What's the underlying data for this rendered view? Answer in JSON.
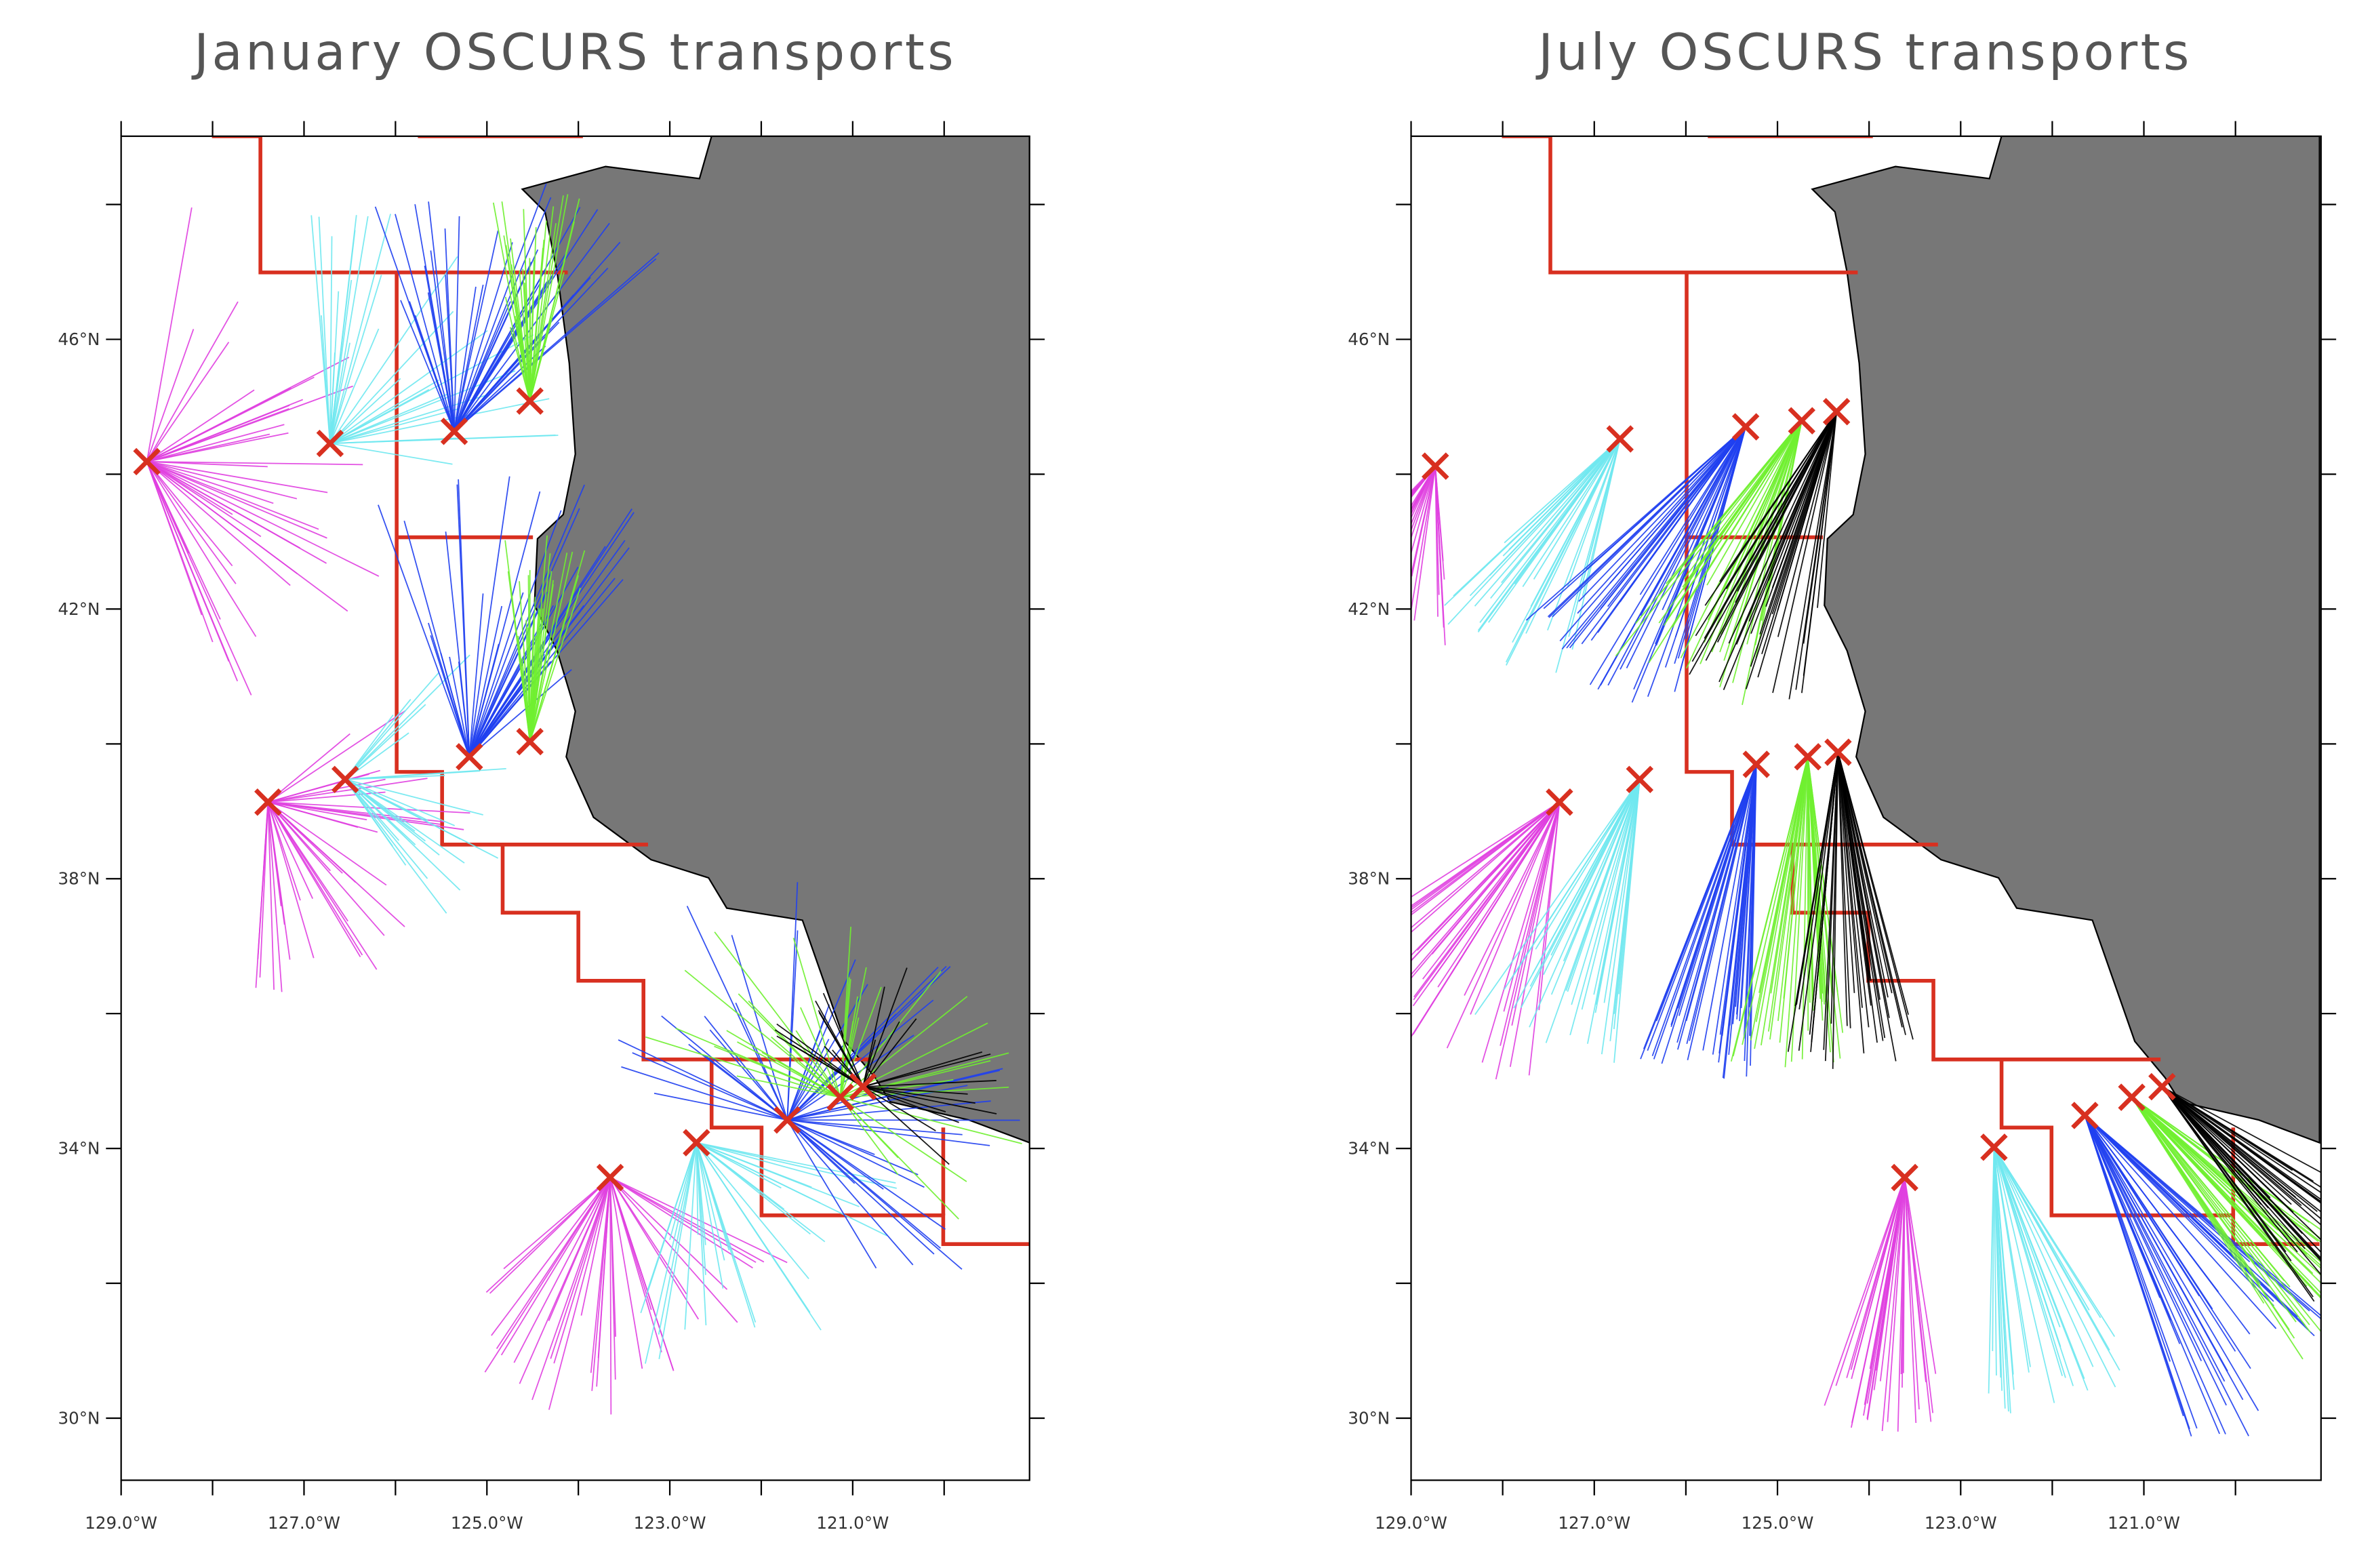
{
  "panels": [
    {
      "title": "January OSCURS transports",
      "x_labels": [
        "129.0°W",
        "127.0°W",
        "125.0°W",
        "123.0°W",
        "121.0°W"
      ],
      "y_labels": [
        "46°N",
        "42°N",
        "38°N",
        "34°N",
        "30°N"
      ]
    },
    {
      "title": "July OSCURS transports",
      "x_labels": [
        "129.0°W",
        "127.0°W",
        "125.0°W",
        "123.0°W",
        "121.0°W"
      ],
      "y_labels": [
        "46°N",
        "42°N",
        "38°N",
        "34°N",
        "30°N"
      ]
    }
  ]
}
